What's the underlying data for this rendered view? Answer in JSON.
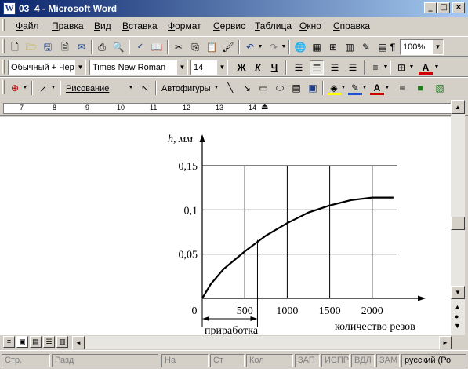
{
  "window": {
    "title": "03_4 - Microsoft Word",
    "minimize_glyph": "_",
    "maximize_glyph": "□",
    "close_glyph": "×"
  },
  "menu": [
    "Файл",
    "Правка",
    "Вид",
    "Вставка",
    "Формат",
    "Сервис",
    "Таблица",
    "Окно",
    "Справка"
  ],
  "toolbar_standard": {
    "zoom": "100%"
  },
  "toolbar_formatting": {
    "style": "Обычный + Чер",
    "font": "Times New Roman",
    "size": "14",
    "bold": "Ж",
    "italic": "К",
    "underline": "Ч"
  },
  "toolbar_drawing": {
    "drawing": "Рисование",
    "autoshapes": "Автофигуры"
  },
  "ruler": {
    "ticks": [
      "7",
      "8",
      "9",
      "10",
      "11",
      "12",
      "13",
      "14"
    ]
  },
  "chart_data": {
    "type": "line",
    "ylabel": "h, мм",
    "xlabel": "количество резов",
    "x_ticks": [
      "0",
      "500",
      "1000",
      "1500",
      "2000"
    ],
    "y_ticks": [
      "0,05",
      "0,1",
      "0,15"
    ],
    "xlim": [
      0,
      2500
    ],
    "ylim": [
      0,
      0.15
    ],
    "grid": true,
    "annotation": "приработка",
    "annotation_range": [
      0,
      650
    ],
    "series": [
      {
        "x": [
          0,
          100,
          250,
          500,
          750,
          1000,
          1250,
          1500,
          1750,
          2000,
          2250
        ],
        "y": [
          0,
          0.016,
          0.033,
          0.053,
          0.071,
          0.085,
          0.097,
          0.105,
          0.111,
          0.114,
          0.114
        ]
      }
    ]
  },
  "status": {
    "page": "Стр.",
    "section": "Разд",
    "at": "На",
    "line": "Ст",
    "col": "Кол",
    "rec": "ЗАП",
    "trk": "ИСПР",
    "ext": "ВДЛ",
    "ovr": "ЗАМ",
    "lang": "русский (Ро"
  }
}
